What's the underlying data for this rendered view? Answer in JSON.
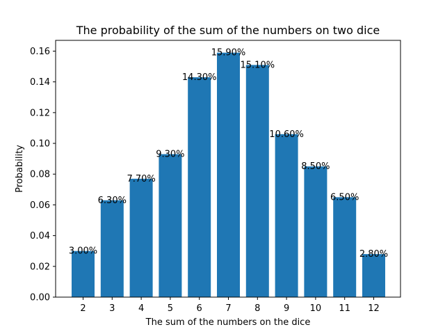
{
  "chart_data": {
    "type": "bar",
    "title": "The probability of the sum of the numbers on two dice",
    "xlabel": "The sum of the numbers on the dice",
    "ylabel": "Probability",
    "categories": [
      "2",
      "3",
      "4",
      "5",
      "6",
      "7",
      "8",
      "9",
      "10",
      "11",
      "12"
    ],
    "values": [
      0.03,
      0.063,
      0.077,
      0.093,
      0.143,
      0.159,
      0.151,
      0.106,
      0.085,
      0.065,
      0.028
    ],
    "data_labels": [
      "3.00%",
      "6.30%",
      "7.70%",
      "9.30%",
      "14.30%",
      "15.90%",
      "15.10%",
      "10.60%",
      "8.50%",
      "6.50%",
      "2.80%"
    ],
    "ylim": [
      0,
      0.167
    ],
    "yticks": [
      "0.00",
      "0.02",
      "0.04",
      "0.06",
      "0.08",
      "0.10",
      "0.12",
      "0.14",
      "0.16"
    ],
    "bar_color": "#1f77b4",
    "grid": false,
    "legend": "none"
  }
}
